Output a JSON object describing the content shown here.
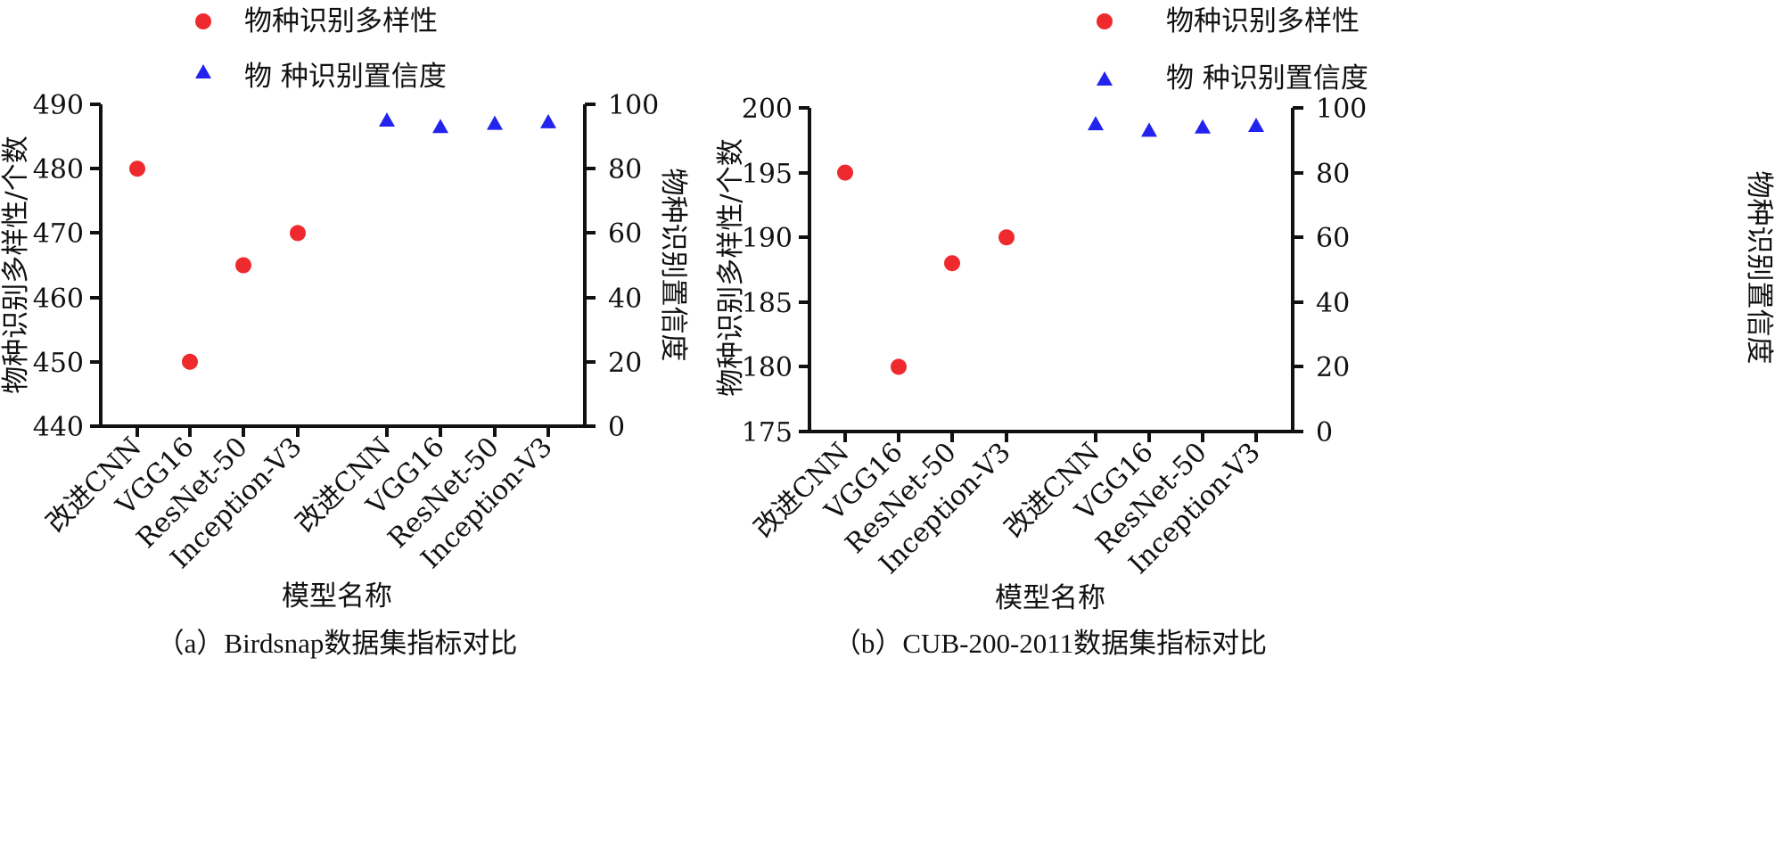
{
  "colors": {
    "diversity": "#ee2a2f",
    "confidence": "#2323ee",
    "axis": "#111111"
  },
  "icons": {
    "diversity_marker": "red-circle-marker",
    "confidence_marker": "blue-triangle-marker"
  },
  "chart_data": [
    {
      "type": "scatter",
      "caption": "（a）Birdsnap数据集指标对比",
      "legend": [
        {
          "label": "物种识别多样性",
          "marker": "circle"
        },
        {
          "label": "物 种识别置信度",
          "marker": "triangle"
        }
      ],
      "xlabel": "模型名称",
      "ylabel_left": "物种识别多样性/个数",
      "ylabel_right": "物种识别置信度",
      "categories": [
        "改进CNN",
        "VGG16",
        "ResNet-50",
        "Inception-V3",
        "改进CNN",
        "VGG16",
        "ResNet-50",
        "Inception-V3"
      ],
      "left_axis": {
        "range": [
          440,
          490
        ],
        "ticks": [
          "440",
          "450",
          "460",
          "470",
          "480",
          "490"
        ]
      },
      "right_axis": {
        "range": [
          0,
          100
        ],
        "ticks": [
          "0",
          "20",
          "40",
          "60",
          "80",
          "100"
        ]
      },
      "series": [
        {
          "name": "物种识别多样性",
          "axis": "left",
          "category_indices": [
            0,
            1,
            2,
            3
          ],
          "values": [
            480,
            450,
            465,
            470
          ]
        },
        {
          "name": "物 种识别置信度",
          "axis": "right",
          "category_indices": [
            4,
            5,
            6,
            7
          ],
          "values": [
            95,
            93,
            94,
            94.5
          ]
        }
      ]
    },
    {
      "type": "scatter",
      "caption": "（b）CUB-200-2011数据集指标对比",
      "legend": [
        {
          "label": "物种识别多样性",
          "marker": "circle"
        },
        {
          "label": "物 种识别置信度",
          "marker": "triangle"
        }
      ],
      "xlabel": "模型名称",
      "ylabel_left": "物种识别多样性/个数",
      "ylabel_right": "物种识别置信度",
      "categories": [
        "改进CNN",
        "VGG16",
        "ResNet-50",
        "Inception-V3",
        "改进CNN",
        "VGG16",
        "ResNet-50",
        "Inception-V3"
      ],
      "left_axis": {
        "range": [
          175,
          200
        ],
        "ticks": [
          "175",
          "180",
          "185",
          "190",
          "195",
          "200"
        ]
      },
      "right_axis": {
        "range": [
          0,
          100
        ],
        "ticks": [
          "0",
          "20",
          "40",
          "60",
          "80",
          "100"
        ]
      },
      "series": [
        {
          "name": "物种识别多样性",
          "axis": "left",
          "category_indices": [
            0,
            1,
            2,
            3
          ],
          "values": [
            195,
            180,
            188,
            190
          ]
        },
        {
          "name": "物 种识别置信度",
          "axis": "right",
          "category_indices": [
            4,
            5,
            6,
            7
          ],
          "values": [
            95,
            93,
            94,
            94.5
          ]
        }
      ]
    }
  ]
}
